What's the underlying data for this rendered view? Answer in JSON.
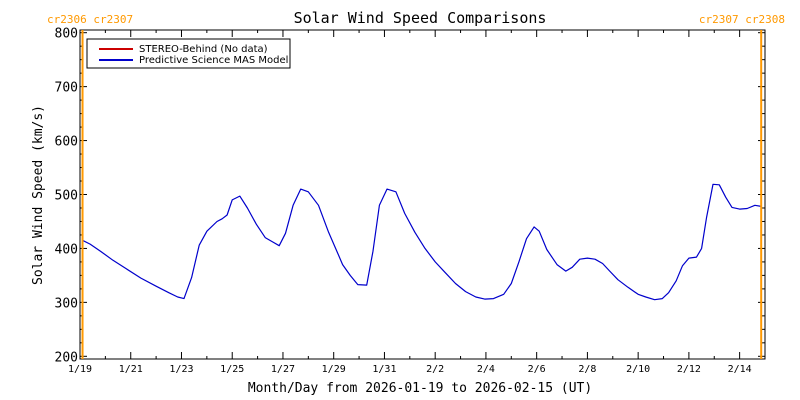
{
  "colors": {
    "background": "#ffffff",
    "frame": "#000000",
    "carrington": "#ff9900",
    "stereo": "#cc0000",
    "model": "#0000cc"
  },
  "carrington": {
    "left_label": "cr2306 cr2307",
    "right_label": "cr2307 cr2308",
    "left_day": 0.1,
    "right_day": 26.85
  },
  "chart_data": {
    "type": "line",
    "title": "Solar Wind Speed Comparisons",
    "xlabel": "Month/Day from 2026-01-19 to 2026-02-15 (UT)",
    "ylabel": "Solar Wind Speed (km/s)",
    "x_unit": "days from 2026-01-19",
    "xlim": [
      0,
      27
    ],
    "ylim": [
      195,
      805
    ],
    "yticks": [
      200,
      300,
      400,
      500,
      600,
      700,
      800
    ],
    "xticks": [
      {
        "day": 0,
        "label": "1/19"
      },
      {
        "day": 2,
        "label": "1/21"
      },
      {
        "day": 4,
        "label": "1/23"
      },
      {
        "day": 6,
        "label": "1/25"
      },
      {
        "day": 8,
        "label": "1/27"
      },
      {
        "day": 10,
        "label": "1/29"
      },
      {
        "day": 12,
        "label": "1/31"
      },
      {
        "day": 14,
        "label": "2/2"
      },
      {
        "day": 16,
        "label": "2/4"
      },
      {
        "day": 18,
        "label": "2/6"
      },
      {
        "day": 20,
        "label": "2/8"
      },
      {
        "day": 22,
        "label": "2/10"
      },
      {
        "day": 24,
        "label": "2/12"
      },
      {
        "day": 26,
        "label": "2/14"
      }
    ],
    "legend_position": "top-left",
    "series": [
      {
        "name": "STEREO-Behind (No data)",
        "color": "#cc0000",
        "x": [],
        "y": []
      },
      {
        "name": "Predictive Science MAS Model",
        "color": "#0000cc",
        "x": [
          0.1,
          0.4,
          0.8,
          1.3,
          1.8,
          2.4,
          3.0,
          3.5,
          3.85,
          4.1,
          4.4,
          4.7,
          5.0,
          5.4,
          5.6,
          5.8,
          6.0,
          6.3,
          6.6,
          6.95,
          7.3,
          7.6,
          7.85,
          8.1,
          8.4,
          8.7,
          9.0,
          9.4,
          9.8,
          10.15,
          10.35,
          10.65,
          10.95,
          11.3,
          11.55,
          11.8,
          12.1,
          12.45,
          12.8,
          13.2,
          13.6,
          14.0,
          14.4,
          14.8,
          15.2,
          15.6,
          15.95,
          16.3,
          16.7,
          17.0,
          17.3,
          17.6,
          17.9,
          18.1,
          18.4,
          18.8,
          19.15,
          19.4,
          19.7,
          20.0,
          20.3,
          20.6,
          20.9,
          21.2,
          21.6,
          22.0,
          22.3,
          22.65,
          22.95,
          23.2,
          23.5,
          23.75,
          24.0,
          24.3,
          24.5,
          24.7,
          24.95,
          25.2,
          25.45,
          25.7,
          26.0,
          26.3,
          26.6,
          26.85
        ],
        "y": [
          415,
          408,
          395,
          378,
          363,
          345,
          330,
          318,
          310,
          307,
          346,
          406,
          432,
          450,
          455,
          462,
          490,
          497,
          475,
          445,
          420,
          412,
          405,
          428,
          480,
          510,
          505,
          480,
          430,
          392,
          370,
          350,
          333,
          332,
          395,
          480,
          510,
          505,
          465,
          430,
          400,
          375,
          355,
          335,
          320,
          310,
          306,
          307,
          315,
          335,
          375,
          418,
          440,
          432,
          398,
          370,
          358,
          365,
          380,
          382,
          380,
          372,
          357,
          342,
          328,
          315,
          310,
          305,
          307,
          318,
          340,
          368,
          382,
          384,
          400,
          458,
          519,
          518,
          495,
          476,
          473,
          474,
          480,
          478
        ]
      }
    ]
  }
}
